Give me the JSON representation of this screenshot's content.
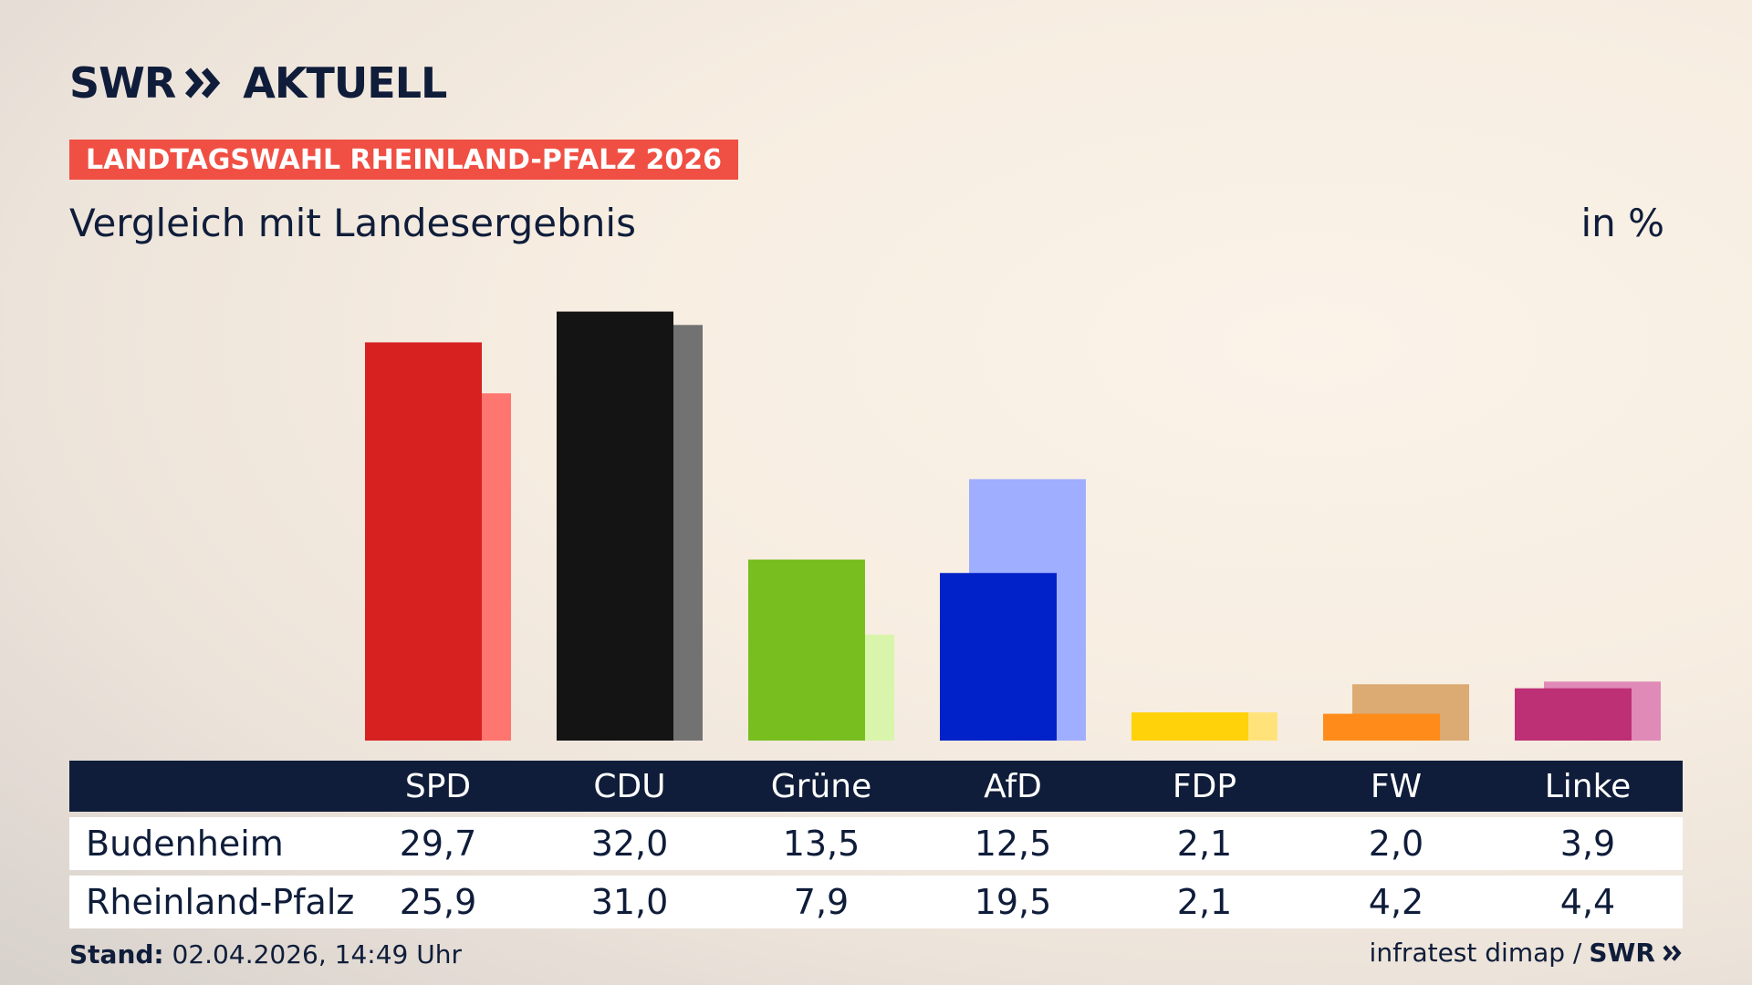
{
  "header": {
    "brand": "SWR",
    "brand_suffix": "AKTUELL",
    "badge": "LANDTAGSWAHL RHEINLAND-PFALZ 2026",
    "subtitle": "Vergleich mit Landesergebnis",
    "unit": "in %"
  },
  "footer": {
    "stand_label": "Stand:",
    "stand_value": "02.04.2026, 14:49 Uhr",
    "source": "infratest dimap /",
    "source_brand": "SWR"
  },
  "colors": {
    "navy": "#0f1d3a",
    "badge": "#f04f43"
  },
  "chart_data": {
    "type": "bar",
    "categories": [
      "SPD",
      "CDU",
      "Grüne",
      "AfD",
      "FDP",
      "FW",
      "Linke"
    ],
    "series": [
      {
        "name": "Budenheim",
        "values": [
          29.7,
          32.0,
          13.5,
          12.5,
          2.1,
          2.0,
          3.9
        ]
      },
      {
        "name": "Rheinland-Pfalz",
        "values": [
          25.9,
          31.0,
          7.9,
          19.5,
          2.1,
          4.2,
          4.4
        ]
      }
    ],
    "display_values": [
      [
        "29,7",
        "32,0",
        "13,5",
        "12,5",
        "2,1",
        "2,0",
        "3,9"
      ],
      [
        "25,9",
        "31,0",
        "7,9",
        "19,5",
        "2,1",
        "4,2",
        "4,4"
      ]
    ],
    "colors_primary": [
      "#d72020",
      "#141414",
      "#78be1e",
      "#0022c8",
      "#ffd20a",
      "#ff8c1a",
      "#be3075"
    ],
    "colors_secondary": [
      "#ff7570",
      "#727272",
      "#d8f5ab",
      "#a0aeff",
      "#ffe37a",
      "#dcaa73",
      "#e08ab8"
    ],
    "ylim": [
      0,
      33
    ]
  }
}
